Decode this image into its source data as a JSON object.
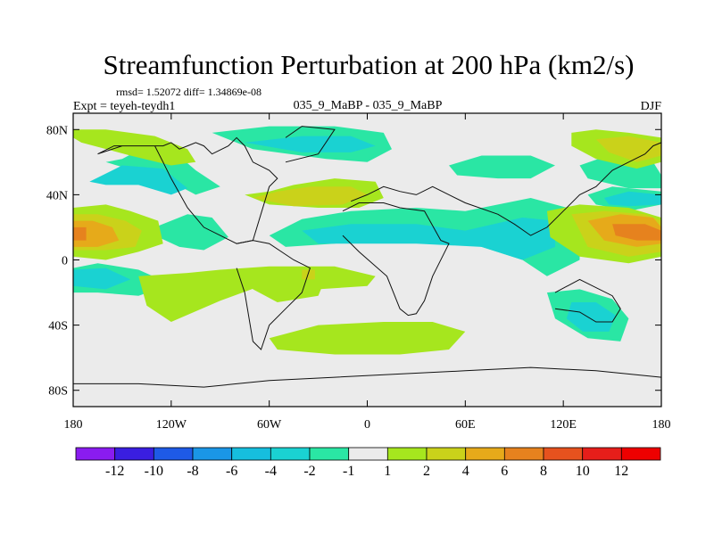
{
  "chart_data": {
    "type": "heatmap",
    "title": "Streamfunction Perturbation at 200 hPa (km2/s)",
    "stats_line": "rmsd= 1.52072 diff= 1.34869e-08",
    "left_label": "Expt = teyeh-teydh1",
    "center_label": "035_9_MaBP - 035_9_MaBP",
    "right_label": "DJF",
    "x_ticks": [
      {
        "value": -180,
        "label": "180"
      },
      {
        "value": -120,
        "label": "120W"
      },
      {
        "value": -60,
        "label": "60W"
      },
      {
        "value": 0,
        "label": "0"
      },
      {
        "value": 60,
        "label": "60E"
      },
      {
        "value": 120,
        "label": "120E"
      },
      {
        "value": 180,
        "label": "180"
      }
    ],
    "y_ticks": [
      {
        "value": 80,
        "label": "80N"
      },
      {
        "value": 40,
        "label": "40N"
      },
      {
        "value": 0,
        "label": "0"
      },
      {
        "value": -40,
        "label": "40S"
      },
      {
        "value": -80,
        "label": "80S"
      }
    ],
    "xlim": [
      -180,
      180
    ],
    "ylim": [
      -90,
      90
    ],
    "colorbar": {
      "labels": [
        "-12",
        "-10",
        "-8",
        "-6",
        "-4",
        "-2",
        "-1",
        "1",
        "2",
        "4",
        "6",
        "8",
        "10",
        "12"
      ],
      "colors": [
        "#8a1cf0",
        "#3a1ee0",
        "#1e5ae6",
        "#1a96e6",
        "#16bede",
        "#1ad2d2",
        "#2ae6a4",
        "#ebebeb",
        "#a6e61e",
        "#cad21a",
        "#e6aa1a",
        "#e6821e",
        "#e6521e",
        "#e61e1a",
        "#ee0000"
      ]
    },
    "contour_fills": [
      {
        "level": "-2",
        "color": "#2ae6a4",
        "lon": [
          -150,
          -135,
          -120,
          -105,
          -90,
          -105,
          -120,
          -135,
          -150,
          -160
        ],
        "lat": [
          62,
          70,
          68,
          55,
          45,
          40,
          48,
          55,
          57,
          60
        ]
      },
      {
        "level": "-4",
        "color": "#1ad2d2",
        "lon": [
          -170,
          -150,
          -125,
          -110,
          -120,
          -140,
          -160
        ],
        "lat": [
          48,
          58,
          56,
          44,
          40,
          46,
          46
        ]
      },
      {
        "level": "-2",
        "color": "#2ae6a4",
        "lon": [
          -95,
          -60,
          -20,
          10,
          15,
          0,
          -25,
          -70
        ],
        "lat": [
          78,
          82,
          82,
          78,
          68,
          60,
          62,
          68
        ]
      },
      {
        "level": "-4",
        "color": "#1ad2d2",
        "lon": [
          -75,
          -40,
          -10,
          5,
          -10,
          -40
        ],
        "lat": [
          72,
          76,
          76,
          70,
          66,
          66
        ]
      },
      {
        "level": "-2",
        "color": "#2ae6a4",
        "lon": [
          -130,
          -110,
          -95,
          -85,
          -100,
          -115,
          -128
        ],
        "lat": [
          20,
          28,
          26,
          14,
          6,
          8,
          14
        ]
      },
      {
        "level": "-2",
        "color": "#2ae6a4",
        "lon": [
          -60,
          -40,
          -10,
          30,
          60,
          100,
          130,
          130,
          110,
          95,
          70,
          40,
          10,
          -20,
          -50
        ],
        "lat": [
          15,
          25,
          30,
          32,
          30,
          38,
          30,
          0,
          -10,
          0,
          8,
          15,
          14,
          10,
          8
        ]
      },
      {
        "level": "-4",
        "color": "#1ad2d2",
        "lon": [
          -40,
          -10,
          30,
          60,
          95,
          115,
          115,
          95,
          70,
          30,
          0,
          -30
        ],
        "lat": [
          18,
          22,
          22,
          18,
          26,
          24,
          8,
          0,
          8,
          10,
          10,
          10
        ]
      },
      {
        "level": "-2",
        "color": "#2ae6a4",
        "lon": [
          50,
          70,
          100,
          115,
          100,
          80,
          55
        ],
        "lat": [
          58,
          64,
          64,
          58,
          50,
          50,
          52
        ]
      },
      {
        "level": "-2",
        "color": "#2ae6a4",
        "lon": [
          130,
          150,
          175,
          180,
          180,
          160,
          135
        ],
        "lat": [
          58,
          65,
          60,
          52,
          44,
          44,
          50
        ]
      },
      {
        "level": "-2",
        "color": "#2ae6a4",
        "lon": [
          135,
          150,
          180,
          180,
          160,
          140
        ],
        "lat": [
          40,
          45,
          42,
          34,
          30,
          34
        ]
      },
      {
        "level": "-4",
        "color": "#1ad2d2",
        "lon": [
          145,
          160,
          180,
          180,
          160,
          148
        ],
        "lat": [
          38,
          42,
          40,
          34,
          33,
          34
        ]
      },
      {
        "level": "-2",
        "color": "#2ae6a4",
        "lon": [
          -180,
          -165,
          -140,
          -120,
          -140,
          -165,
          -180
        ],
        "lat": [
          -5,
          -2,
          -6,
          -15,
          -22,
          -20,
          -20
        ]
      },
      {
        "level": "-4",
        "color": "#1ad2d2",
        "lon": [
          -180,
          -160,
          -145,
          -160,
          -180
        ],
        "lat": [
          -6,
          -5,
          -12,
          -18,
          -16
        ]
      },
      {
        "level": "-2",
        "color": "#2ae6a4",
        "lon": [
          110,
          130,
          150,
          160,
          155,
          135,
          115
        ],
        "lat": [
          -20,
          -18,
          -24,
          -36,
          -50,
          -48,
          -36
        ]
      },
      {
        "level": "-4",
        "color": "#1ad2d2",
        "lon": [
          125,
          140,
          152,
          148,
          132,
          122
        ],
        "lat": [
          -26,
          -26,
          -34,
          -44,
          -44,
          -36
        ]
      },
      {
        "level": "2",
        "color": "#a6e61e",
        "lon": [
          -180,
          -160,
          -130,
          -110,
          -105,
          -120,
          -145,
          -175,
          -180
        ],
        "lat": [
          80,
          80,
          76,
          68,
          60,
          58,
          64,
          72,
          75
        ]
      },
      {
        "level": "2",
        "color": "#a6e61e",
        "lon": [
          -180,
          -160,
          -145,
          -128,
          -125,
          -140,
          -160,
          -180
        ],
        "lat": [
          32,
          34,
          30,
          24,
          10,
          5,
          0,
          2
        ]
      },
      {
        "level": "4",
        "color": "#cad21a",
        "lon": [
          -180,
          -165,
          -148,
          -138,
          -142,
          -160,
          -180
        ],
        "lat": [
          28,
          28,
          24,
          18,
          8,
          6,
          6
        ]
      },
      {
        "level": "6",
        "color": "#e6aa1a",
        "lon": [
          -180,
          -168,
          -156,
          -152,
          -165,
          -180
        ],
        "lat": [
          24,
          24,
          20,
          12,
          8,
          8
        ]
      },
      {
        "level": "8",
        "color": "#e6821e",
        "lon": [
          -180,
          -172,
          -172,
          -180
        ],
        "lat": [
          20,
          20,
          12,
          12
        ]
      },
      {
        "level": "2",
        "color": "#a6e61e",
        "lon": [
          -75,
          -60,
          -45,
          -20,
          5,
          10,
          -5,
          -30,
          -60
        ],
        "lat": [
          40,
          42,
          46,
          50,
          48,
          38,
          32,
          32,
          34
        ]
      },
      {
        "level": "4",
        "color": "#cad21a",
        "lon": [
          -70,
          -55,
          -35,
          -10,
          0,
          -15,
          -45
        ],
        "lat": [
          38,
          42,
          45,
          45,
          40,
          34,
          33
        ]
      },
      {
        "level": "2",
        "color": "#a6e61e",
        "lon": [
          -140,
          -110,
          -90,
          -60,
          -20,
          5,
          0,
          -30,
          -60,
          -90,
          -120,
          -135
        ],
        "lat": [
          -10,
          -8,
          -6,
          -4,
          -4,
          -10,
          -16,
          -18,
          -14,
          -25,
          -38,
          -28
        ]
      },
      {
        "level": "2",
        "color": "#a6e61e",
        "lon": [
          -75,
          -60,
          -40,
          -25,
          -30,
          -55,
          -70
        ],
        "lat": [
          -8,
          -6,
          -6,
          -10,
          -22,
          -26,
          -18
        ]
      },
      {
        "level": "4",
        "color": "#cad21a",
        "lon": [
          -40,
          -32,
          -32,
          -40
        ],
        "lat": [
          -6,
          -6,
          -12,
          -12
        ]
      },
      {
        "level": "2",
        "color": "#a6e61e",
        "lon": [
          -60,
          -30,
          10,
          40,
          60,
          50,
          20,
          -20,
          -55
        ],
        "lat": [
          -48,
          -40,
          -38,
          -38,
          -44,
          -55,
          -58,
          -58,
          -55
        ]
      },
      {
        "level": "2",
        "color": "#a6e61e",
        "lon": [
          125,
          140,
          160,
          180,
          180,
          165,
          140,
          125
        ],
        "lat": [
          78,
          80,
          78,
          75,
          60,
          56,
          62,
          70
        ]
      },
      {
        "level": "4",
        "color": "#cad21a",
        "lon": [
          140,
          160,
          180,
          180,
          165,
          148
        ],
        "lat": [
          74,
          76,
          72,
          64,
          60,
          66
        ]
      },
      {
        "level": "2",
        "color": "#a6e61e",
        "lon": [
          110,
          130,
          160,
          180,
          180,
          160,
          130,
          112
        ],
        "lat": [
          30,
          34,
          32,
          26,
          2,
          -2,
          2,
          14
        ]
      },
      {
        "level": "4",
        "color": "#cad21a",
        "lon": [
          125,
          145,
          170,
          180,
          180,
          160,
          135
        ],
        "lat": [
          28,
          30,
          28,
          24,
          5,
          2,
          8
        ]
      },
      {
        "level": "6",
        "color": "#e6aa1a",
        "lon": [
          135,
          155,
          175,
          180,
          180,
          165,
          145
        ],
        "lat": [
          24,
          28,
          26,
          20,
          10,
          8,
          12
        ]
      },
      {
        "level": "8",
        "color": "#e6821e",
        "lon": [
          150,
          170,
          180,
          180,
          165,
          152
        ],
        "lat": [
          22,
          22,
          18,
          12,
          12,
          15
        ]
      }
    ],
    "coastlines": [
      {
        "lon": [
          -165,
          -150,
          -130,
          -125,
          -120,
          -110,
          -100,
          -90,
          -80,
          -70,
          -60,
          -55,
          -60,
          -70,
          -75,
          -80,
          -85,
          -95,
          -100,
          -105,
          -110,
          -115,
          -120,
          -125,
          -140,
          -155,
          -165
        ],
        "lat": [
          65,
          70,
          70,
          60,
          50,
          32,
          20,
          15,
          10,
          12,
          45,
          50,
          55,
          60,
          70,
          75,
          70,
          65,
          70,
          72,
          70,
          68,
          72,
          70,
          70,
          70,
          65
        ]
      },
      {
        "lon": [
          -80,
          -70,
          -60,
          -45,
          -35,
          -40,
          -50,
          -60,
          -65,
          -70,
          -75,
          -80
        ],
        "lat": [
          10,
          12,
          10,
          0,
          -5,
          -20,
          -30,
          -40,
          -55,
          -50,
          -20,
          -5
        ]
      },
      {
        "lon": [
          -10,
          0,
          10,
          20,
          30,
          40,
          50,
          60,
          80,
          90,
          100,
          110,
          120,
          130,
          140,
          150,
          160,
          170,
          175,
          180
        ],
        "lat": [
          36,
          40,
          45,
          42,
          40,
          45,
          40,
          35,
          28,
          22,
          15,
          20,
          30,
          40,
          45,
          55,
          60,
          65,
          70,
          72
        ]
      },
      {
        "lon": [
          -15,
          -5,
          10,
          20,
          35,
          45,
          50,
          40,
          35,
          30,
          25,
          20,
          12,
          -5,
          -15
        ],
        "lat": [
          30,
          35,
          35,
          32,
          30,
          12,
          10,
          -10,
          -25,
          -33,
          -34,
          -30,
          -10,
          5,
          15
        ]
      },
      {
        "lon": [
          115,
          130,
          150,
          155,
          150,
          140,
          130,
          115
        ],
        "lat": [
          -20,
          -12,
          -22,
          -30,
          -38,
          -38,
          -32,
          -30
        ]
      },
      {
        "lon": [
          -50,
          -30,
          -20,
          -40,
          -50
        ],
        "lat": [
          60,
          65,
          80,
          82,
          75
        ]
      },
      {
        "lon": [
          -180,
          -140,
          -100,
          -60,
          -20,
          20,
          60,
          100,
          140,
          180
        ],
        "lat": [
          -76,
          -76,
          -78,
          -74,
          -72,
          -70,
          -68,
          -66,
          -68,
          -72
        ]
      }
    ]
  }
}
